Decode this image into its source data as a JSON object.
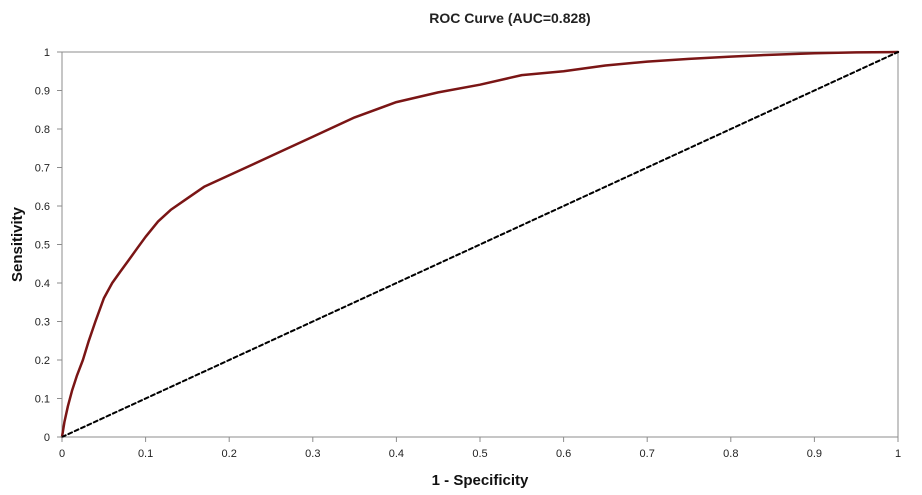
{
  "chart_data": {
    "type": "line",
    "title": "ROC Curve (AUC=0.828)",
    "xlabel": "1 - Specificity",
    "ylabel": "Sensitivity",
    "xlim": [
      0,
      1
    ],
    "ylim": [
      0,
      1
    ],
    "x_ticks": [
      "0",
      "0.1",
      "0.2",
      "0.3",
      "0.4",
      "0.5",
      "0.6",
      "0.7",
      "0.8",
      "0.9",
      "1"
    ],
    "y_ticks": [
      "0",
      "0.1",
      "0.2",
      "0.3",
      "0.4",
      "0.5",
      "0.6",
      "0.7",
      "0.8",
      "0.9",
      "1"
    ],
    "grid": false,
    "legend": "none",
    "series": [
      {
        "color": "#7a1515",
        "style": "solid",
        "x": [
          0,
          0.003,
          0.007,
          0.012,
          0.018,
          0.025,
          0.032,
          0.04,
          0.05,
          0.06,
          0.07,
          0.08,
          0.09,
          0.1,
          0.115,
          0.13,
          0.15,
          0.17,
          0.2,
          0.23,
          0.26,
          0.3,
          0.35,
          0.4,
          0.45,
          0.5,
          0.55,
          0.6,
          0.65,
          0.7,
          0.75,
          0.8,
          0.85,
          0.9,
          0.95,
          1.0
        ],
        "y": [
          0,
          0.04,
          0.08,
          0.12,
          0.16,
          0.2,
          0.25,
          0.3,
          0.36,
          0.4,
          0.43,
          0.46,
          0.49,
          0.52,
          0.56,
          0.59,
          0.62,
          0.65,
          0.68,
          0.71,
          0.74,
          0.78,
          0.83,
          0.87,
          0.895,
          0.915,
          0.94,
          0.95,
          0.965,
          0.975,
          0.982,
          0.988,
          0.993,
          0.997,
          0.999,
          1.0
        ]
      },
      {
        "color": "#000000",
        "style": "dashed",
        "x": [
          0,
          1
        ],
        "y": [
          0,
          1
        ]
      }
    ]
  }
}
